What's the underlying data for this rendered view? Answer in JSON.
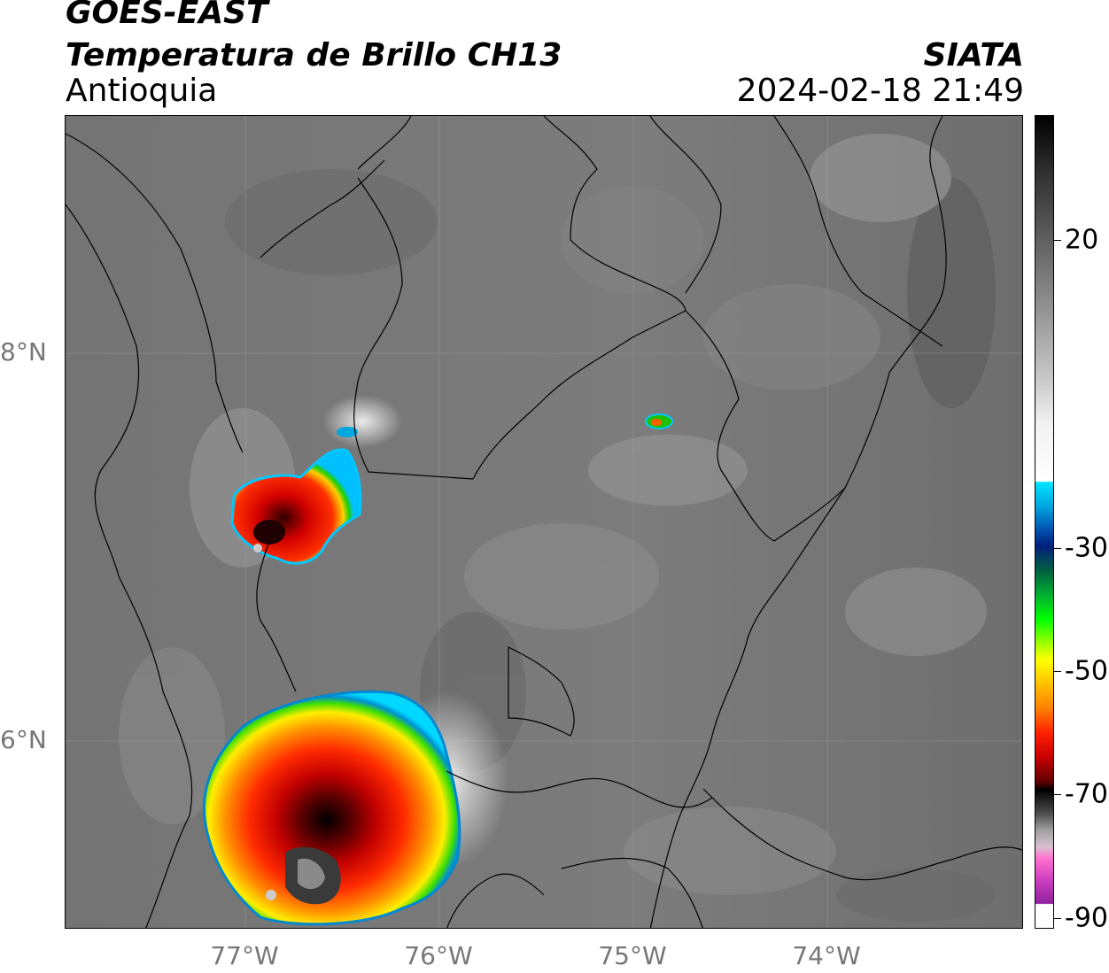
{
  "header": {
    "title_line1": "GOES-EAST",
    "title_line2": "Temperatura de Brillo CH13",
    "region": "Antioquia",
    "agency": "SIATA",
    "timestamp": "2024-02-18 21:49"
  },
  "map": {
    "lat_ticks": [
      "8°N",
      "6°N"
    ],
    "lon_ticks": [
      "77°W",
      "76°W",
      "75°W",
      "74°W"
    ]
  },
  "colorbar": {
    "labels": [
      "20",
      "-30",
      "-50",
      "-70",
      "-90"
    ]
  },
  "colors": {
    "background_gray": "#7a7a7a",
    "storm_red": "#ff2000",
    "storm_yellow": "#ffff00",
    "storm_cyan": "#00c8ff"
  }
}
